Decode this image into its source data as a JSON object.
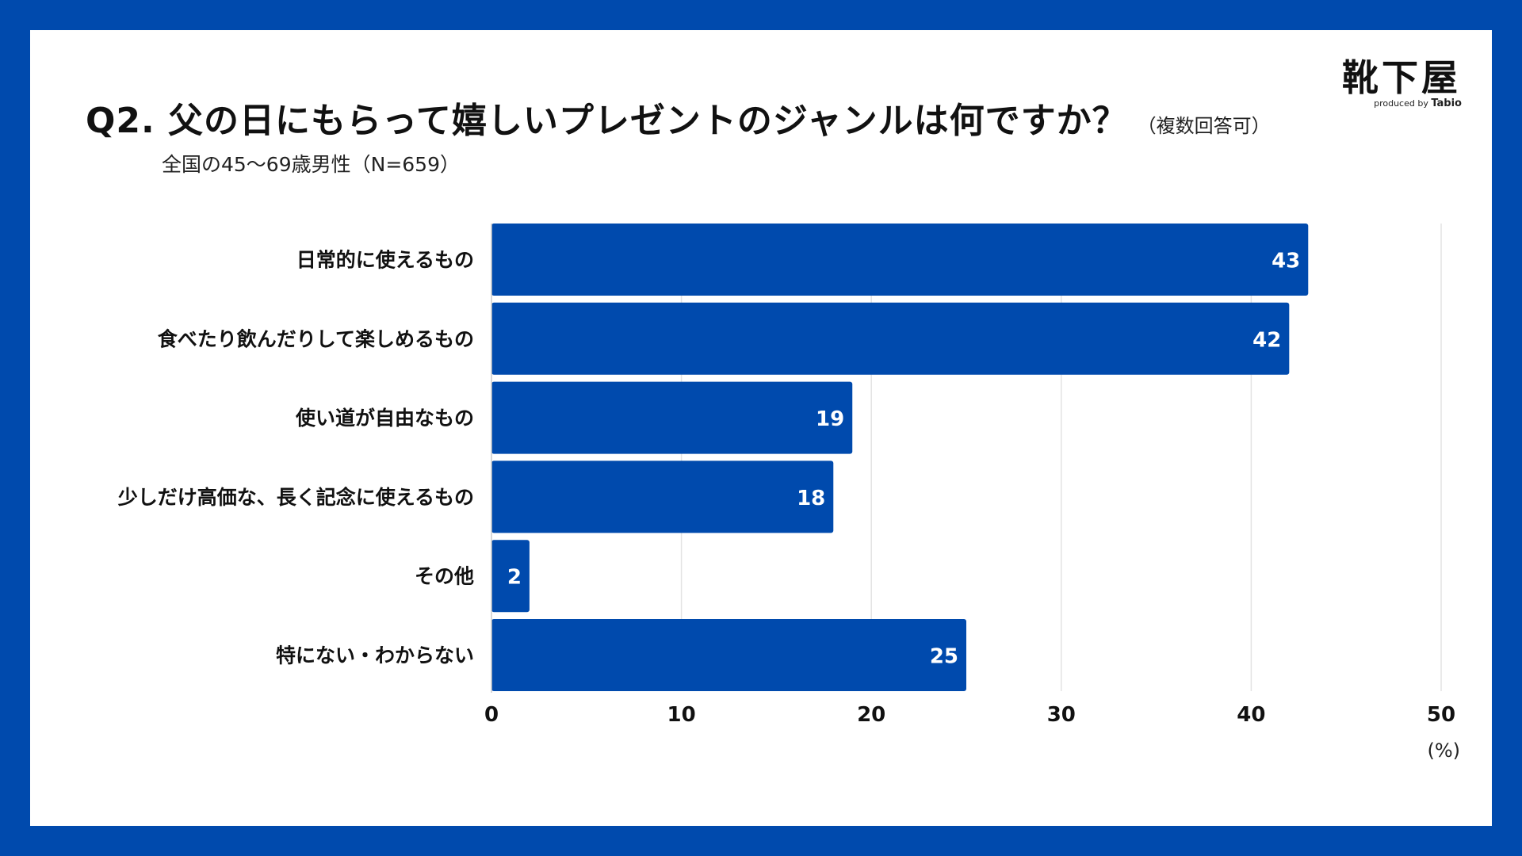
{
  "header": {
    "title": "Q2. 父の日にもらって嬉しいプレゼントのジャンルは何ですか？",
    "title_note": "（複数回答可）",
    "subtitle": "全国の45〜69歳男性（N=659）"
  },
  "logo": {
    "main": "靴下屋",
    "produced_by": "produced by",
    "brand": "Tabio"
  },
  "colors": {
    "frame": "#004aad",
    "bar": "#004aad",
    "grid": "#e3e3e3"
  },
  "chart_data": {
    "type": "bar",
    "orientation": "horizontal",
    "categories": [
      "日常的に使えるもの",
      "食べたり飲んだりして楽しめるもの",
      "使い道が自由なもの",
      "少しだけ高価な、長く記念に使えるもの",
      "その他",
      "特にない・わからない"
    ],
    "values": [
      43,
      42,
      19,
      18,
      2,
      25
    ],
    "value_labels": [
      "43",
      "42",
      "19",
      "18",
      "2",
      "25"
    ],
    "xlim": [
      0,
      50
    ],
    "xticks": [
      "0",
      "10",
      "20",
      "30",
      "40",
      "50"
    ],
    "unit": "(%)",
    "grid": true,
    "legend": "none"
  }
}
